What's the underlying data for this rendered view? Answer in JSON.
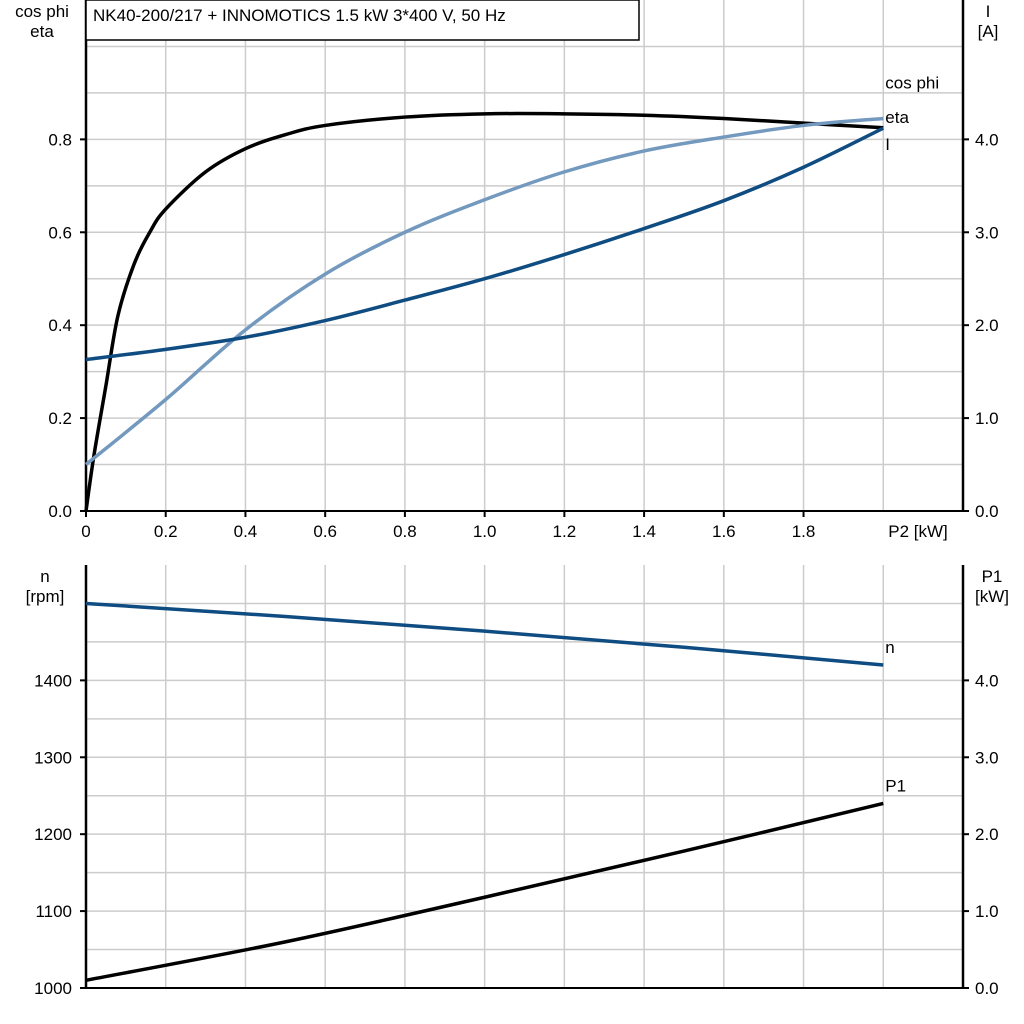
{
  "chart_data": [
    {
      "type": "line",
      "title": "NK40-200/217 + INNOMOTICS   1.5 kW   3*400 V, 50 Hz",
      "xlabel": "P2 [kW]",
      "ylabel_left": [
        "cos phi",
        "eta"
      ],
      "ylabel_right": [
        "I",
        "[A]"
      ],
      "xlim": [
        0,
        2.2
      ],
      "ylim_left": [
        0,
        1.1
      ],
      "ylim_right": [
        0,
        5.5
      ],
      "x_ticks": [
        "0",
        "0.2",
        "0.4",
        "0.6",
        "0.8",
        "1.0",
        "1.2",
        "1.4",
        "1.6",
        "1.8"
      ],
      "y_ticks_left": [
        "0.0",
        "0.2",
        "0.4",
        "0.6",
        "0.8"
      ],
      "y_ticks_right": [
        "0.0",
        "1.0",
        "2.0",
        "3.0",
        "4.0"
      ],
      "grid": true,
      "series": [
        {
          "name": "eta",
          "axis": "left",
          "color": "#000000",
          "x": [
            0,
            0.02,
            0.05,
            0.08,
            0.12,
            0.16,
            0.2,
            0.3,
            0.4,
            0.5,
            0.6,
            0.8,
            1.0,
            1.2,
            1.4,
            1.6,
            1.8,
            2.0
          ],
          "y": [
            0,
            0.12,
            0.27,
            0.42,
            0.53,
            0.6,
            0.65,
            0.73,
            0.78,
            0.81,
            0.83,
            0.848,
            0.855,
            0.855,
            0.852,
            0.845,
            0.835,
            0.825
          ]
        },
        {
          "name": "cos phi",
          "axis": "left",
          "color": "#7399bf",
          "x": [
            0,
            0.2,
            0.4,
            0.6,
            0.8,
            1.0,
            1.2,
            1.4,
            1.6,
            1.8,
            2.0
          ],
          "y": [
            0.1,
            0.24,
            0.39,
            0.51,
            0.6,
            0.67,
            0.73,
            0.775,
            0.805,
            0.83,
            0.845
          ]
        },
        {
          "name": "I",
          "axis": "right",
          "color": "#0f4c81",
          "x": [
            0,
            0.2,
            0.4,
            0.6,
            0.8,
            1.0,
            1.2,
            1.4,
            1.6,
            1.8,
            2.0
          ],
          "y": [
            1.63,
            1.74,
            1.87,
            2.05,
            2.27,
            2.5,
            2.76,
            3.04,
            3.34,
            3.7,
            4.12
          ]
        }
      ]
    },
    {
      "type": "line",
      "ylabel_left": [
        "n",
        "[rpm]"
      ],
      "ylabel_right": [
        "P1",
        "[kW]"
      ],
      "xlim": [
        0,
        2.2
      ],
      "ylim_left": [
        1000,
        1550
      ],
      "ylim_right": [
        0,
        5.5
      ],
      "y_ticks_left": [
        "1000",
        "1100",
        "1200",
        "1300",
        "1400"
      ],
      "y_ticks_right": [
        "0.0",
        "1.0",
        "2.0",
        "3.0",
        "4.0"
      ],
      "grid": true,
      "series": [
        {
          "name": "n",
          "axis": "left",
          "color": "#0f4c81",
          "x": [
            0,
            0.5,
            1.0,
            1.5,
            2.0
          ],
          "y": [
            1500,
            1483,
            1464,
            1443,
            1420
          ]
        },
        {
          "name": "P1",
          "axis": "right",
          "color": "#000000",
          "x": [
            0,
            0.5,
            1.0,
            1.5,
            2.0
          ],
          "y": [
            0.1,
            0.6,
            1.18,
            1.78,
            2.4
          ]
        }
      ]
    }
  ]
}
